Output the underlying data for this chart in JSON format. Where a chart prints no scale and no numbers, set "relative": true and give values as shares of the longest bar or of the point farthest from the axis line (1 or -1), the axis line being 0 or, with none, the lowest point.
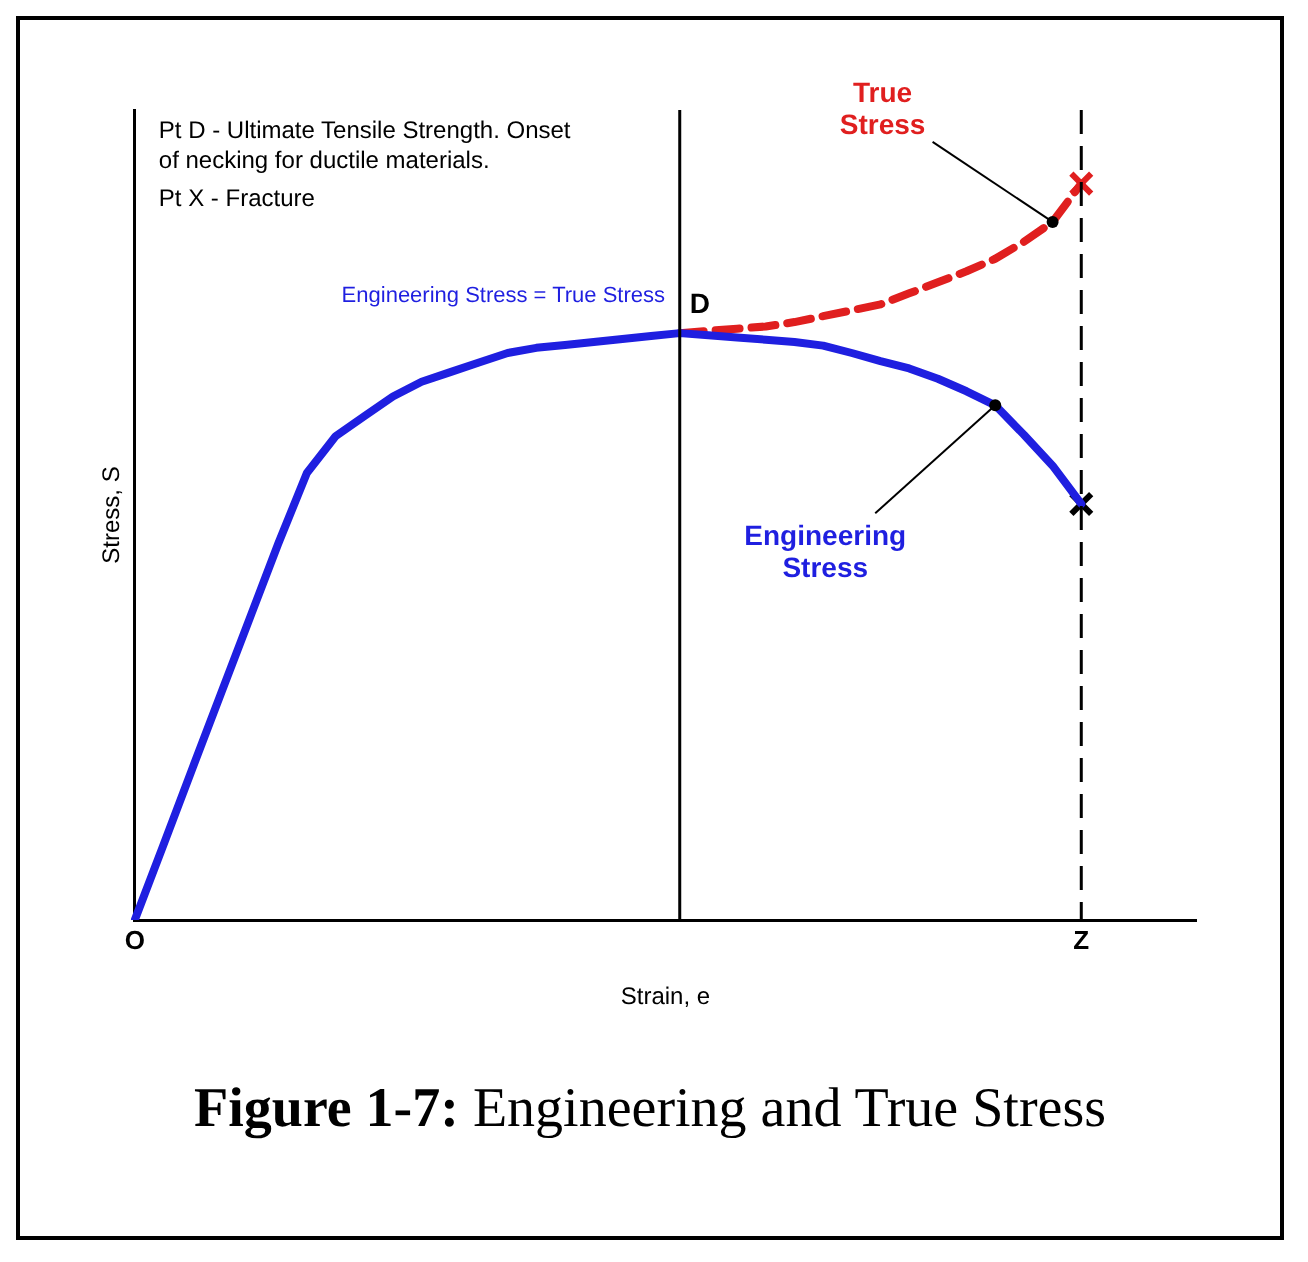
{
  "chart_data": {
    "type": "line",
    "relative": true,
    "title": "Figure 1-7: Engineering and True Stress",
    "xlabel": "Strain, e",
    "ylabel": "Stress, S",
    "categories": [
      "O",
      null,
      null,
      null,
      null,
      null,
      null,
      null,
      null,
      null,
      null,
      null,
      null,
      null,
      null,
      null,
      null,
      null,
      null,
      null,
      null,
      null,
      null,
      null,
      null,
      null,
      null,
      null,
      null,
      null,
      null,
      null,
      null,
      "Z",
      null,
      null,
      null,
      null
    ],
    "series": [
      {
        "name": "Engineering Stress",
        "color": "#1f1fe0",
        "values": [
          0,
          0.102,
          0.205,
          0.307,
          0.409,
          0.511,
          0.607,
          0.657,
          0.684,
          0.711,
          0.731,
          0.744,
          0.757,
          0.77,
          0.777,
          0.781,
          0.785,
          0.789,
          0.793,
          0.797,
          0.794,
          0.791,
          0.788,
          0.785,
          0.78,
          0.77,
          0.759,
          0.749,
          0.735,
          0.718,
          0.699,
          0.659,
          0.617,
          0.565,
          null,
          null,
          null,
          null
        ]
      },
      {
        "name": "True Stress",
        "color": "#e01f1f",
        "line_style": "dashed",
        "values": [
          null,
          null,
          null,
          null,
          null,
          null,
          null,
          null,
          null,
          null,
          null,
          null,
          null,
          null,
          null,
          null,
          null,
          null,
          null,
          0.797,
          0.8,
          0.803,
          0.806,
          0.812,
          0.82,
          0.828,
          0.836,
          0.851,
          0.866,
          0.881,
          0.898,
          0.921,
          0.948,
          1,
          null,
          null,
          null,
          null
        ]
      },
      {
        "type": "scatter",
        "marker": "cross",
        "color": "#e01f1f",
        "x": [
          "Z"
        ],
        "values": [
          1
        ]
      },
      {
        "type": "scatter",
        "marker": "cross",
        "color": "#000000",
        "x": [
          "Z"
        ],
        "values": [
          0.565
        ]
      }
    ],
    "ref_lines": [
      {
        "axis": "x",
        "value": "Z",
        "line_style": "dashed",
        "color": "#000000"
      }
    ],
    "annotations": [
      "Pt D - Ultimate Tensile Strength. Onset of necking for ductile materials.",
      "Pt X - Fracture",
      "Engineering Stress = True Stress",
      "D"
    ],
    "legend": false,
    "grid": false,
    "marker": "none"
  }
}
